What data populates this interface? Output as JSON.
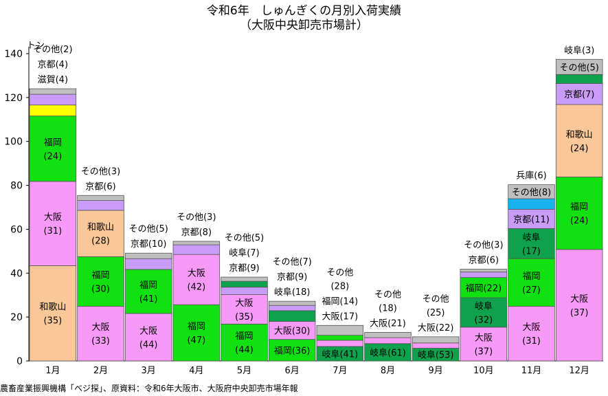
{
  "chart_data": {
    "type": "bar",
    "stacked": true,
    "title": "令和6年　しゅんぎくの月別入荷実績",
    "subtitle": "（大阪中央卸売市場計）",
    "ylabel": "トン",
    "ylim": [
      0,
      140
    ],
    "yticks": [
      0,
      20,
      40,
      60,
      80,
      100,
      120,
      140
    ],
    "grid": false,
    "categories": [
      "1月",
      "2月",
      "3月",
      "4月",
      "5月",
      "6月",
      "7月",
      "8月",
      "9月",
      "10月",
      "11月",
      "12月"
    ],
    "bars": [
      {
        "month": "1月",
        "segments": [
          {
            "name": "和歌山",
            "value": 43.4,
            "share": 35,
            "label": "和歌山\n(35)"
          },
          {
            "name": "大阪",
            "value": 38.4,
            "share": 31,
            "label": "大阪\n(31)"
          },
          {
            "name": "福岡",
            "value": 29.8,
            "share": 24,
            "label": "福岡\n(24)"
          },
          {
            "name": "滋賀",
            "value": 5.0,
            "share": 4,
            "label": "滋賀(4)"
          },
          {
            "name": "京都",
            "value": 4.9,
            "share": 4,
            "label": "京都(4)"
          },
          {
            "name": "その他",
            "value": 2.5,
            "share": 2,
            "label": "その他(2)"
          }
        ]
      },
      {
        "month": "2月",
        "segments": [
          {
            "name": "大阪",
            "value": 24.9,
            "share": 33,
            "label": "大阪\n(33)"
          },
          {
            "name": "福岡",
            "value": 22.6,
            "share": 30,
            "label": "福岡\n(30)"
          },
          {
            "name": "和歌山",
            "value": 21.1,
            "share": 28,
            "label": "和歌山\n(28)"
          },
          {
            "name": "京都",
            "value": 4.5,
            "share": 6,
            "label": "京都(6)"
          },
          {
            "name": "その他",
            "value": 2.3,
            "share": 3,
            "label": "その他(3)"
          }
        ]
      },
      {
        "month": "3月",
        "segments": [
          {
            "name": "大阪",
            "value": 21.6,
            "share": 44,
            "label": "大阪\n(44)"
          },
          {
            "name": "福岡",
            "value": 20.1,
            "share": 41,
            "label": "福岡\n(41)"
          },
          {
            "name": "京都",
            "value": 4.9,
            "share": 10,
            "label": "京都(10)"
          },
          {
            "name": "その他",
            "value": 2.5,
            "share": 5,
            "label": "その他(5)"
          }
        ]
      },
      {
        "month": "4月",
        "segments": [
          {
            "name": "福岡",
            "value": 25.6,
            "share": 47,
            "label": "福岡\n(47)"
          },
          {
            "name": "大阪",
            "value": 22.9,
            "share": 42,
            "label": "大阪\n(42)"
          },
          {
            "name": "京都",
            "value": 4.4,
            "share": 8,
            "label": "京都(8)"
          },
          {
            "name": "その他",
            "value": 1.6,
            "share": 3,
            "label": "その他(3)"
          }
        ]
      },
      {
        "month": "5月",
        "segments": [
          {
            "name": "福岡",
            "value": 16.8,
            "share": 44,
            "label": "福岡\n(44)"
          },
          {
            "name": "大阪",
            "value": 13.4,
            "share": 35,
            "label": "大阪\n(35)"
          },
          {
            "name": "京都",
            "value": 3.4,
            "share": 9,
            "label": "京都(9)"
          },
          {
            "name": "岐阜",
            "value": 2.7,
            "share": 7,
            "label": "岐阜(7)"
          },
          {
            "name": "その他",
            "value": 1.9,
            "share": 5,
            "label": "その他(5)"
          }
        ]
      },
      {
        "month": "6月",
        "segments": [
          {
            "name": "福岡",
            "value": 9.8,
            "share": 36,
            "label": "福岡(36)"
          },
          {
            "name": "大阪",
            "value": 8.2,
            "share": 30,
            "label": "大阪(30)"
          },
          {
            "name": "岐阜",
            "value": 4.9,
            "share": 18,
            "label": "岐阜(18)"
          },
          {
            "name": "京都",
            "value": 2.4,
            "share": 9,
            "label": "京都(9)"
          },
          {
            "name": "その他",
            "value": 1.9,
            "share": 7,
            "label": "その他(7)"
          }
        ]
      },
      {
        "month": "7月",
        "segments": [
          {
            "name": "岐阜",
            "value": 6.6,
            "share": 41,
            "label": "岐阜(41)"
          },
          {
            "name": "大阪",
            "value": 2.8,
            "share": 17,
            "label": "大阪(17)"
          },
          {
            "name": "福岡",
            "value": 2.3,
            "share": 14,
            "label": "福岡(14)"
          },
          {
            "name": "その他",
            "value": 4.5,
            "share": 28,
            "label": "その他\n(28)"
          }
        ]
      },
      {
        "month": "8月",
        "segments": [
          {
            "name": "岐阜",
            "value": 7.9,
            "share": 61,
            "label": "岐阜(61)"
          },
          {
            "name": "大阪",
            "value": 2.7,
            "share": 21,
            "label": "大阪(21)"
          },
          {
            "name": "その他",
            "value": 2.4,
            "share": 18,
            "label": "その他\n(18)"
          }
        ]
      },
      {
        "month": "9月",
        "segments": [
          {
            "name": "岐阜",
            "value": 5.8,
            "share": 53,
            "label": "岐阜(53)"
          },
          {
            "name": "大阪",
            "value": 2.4,
            "share": 22,
            "label": "大阪(22)"
          },
          {
            "name": "その他",
            "value": 2.8,
            "share": 25,
            "label": "その他\n(25)"
          }
        ]
      },
      {
        "month": "10月",
        "segments": [
          {
            "name": "大阪",
            "value": 15.4,
            "share": 37,
            "label": "大阪\n(37)"
          },
          {
            "name": "岐阜",
            "value": 13.4,
            "share": 32,
            "label": "岐阜\n(32)"
          },
          {
            "name": "福岡",
            "value": 9.2,
            "share": 22,
            "label": "福岡(22)"
          },
          {
            "name": "京都",
            "value": 2.5,
            "share": 6,
            "label": "京都(6)"
          },
          {
            "name": "その他",
            "value": 1.3,
            "share": 3,
            "label": "その他(3)"
          }
        ]
      },
      {
        "month": "11月",
        "segments": [
          {
            "name": "大阪",
            "value": 24.9,
            "share": 31,
            "label": "大阪\n(31)"
          },
          {
            "name": "福岡",
            "value": 21.7,
            "share": 27,
            "label": "福岡\n(27)"
          },
          {
            "name": "岐阜",
            "value": 13.7,
            "share": 17,
            "label": "岐阜\n(17)"
          },
          {
            "name": "京都",
            "value": 8.8,
            "share": 11,
            "label": "京都(11)"
          },
          {
            "name": "兵庫",
            "value": 4.8,
            "share": 6,
            "label": "兵庫(6)"
          },
          {
            "name": "その他",
            "value": 6.4,
            "share": 8,
            "label": "その他(8)"
          }
        ]
      },
      {
        "month": "12月",
        "segments": [
          {
            "name": "大阪",
            "value": 50.8,
            "share": 37,
            "label": "大阪\n(37)"
          },
          {
            "name": "福岡",
            "value": 33.0,
            "share": 24,
            "label": "福岡\n(24)"
          },
          {
            "name": "和歌山",
            "value": 33.0,
            "share": 24,
            "label": "和歌山\n(24)"
          },
          {
            "name": "京都",
            "value": 9.6,
            "share": 7,
            "label": "京都(7)"
          },
          {
            "name": "岐阜",
            "value": 4.1,
            "share": 3,
            "label": "岐阜(3)"
          },
          {
            "name": "その他",
            "value": 6.9,
            "share": 5,
            "label": "その他(5)"
          }
        ]
      }
    ],
    "colors": {
      "和歌山": "#fac898",
      "大阪": "#f799f7",
      "福岡": "#11e011",
      "滋賀": "#ffff00",
      "京都": "#c89cf7",
      "その他": "#bfbfbf",
      "岐阜": "#0fa14b",
      "兵庫": "#17b2ef"
    }
  },
  "source_note": "農畜産業振興機構「ベジ探」、原資料：令和6年大阪市、大阪府中央卸売市場年報"
}
